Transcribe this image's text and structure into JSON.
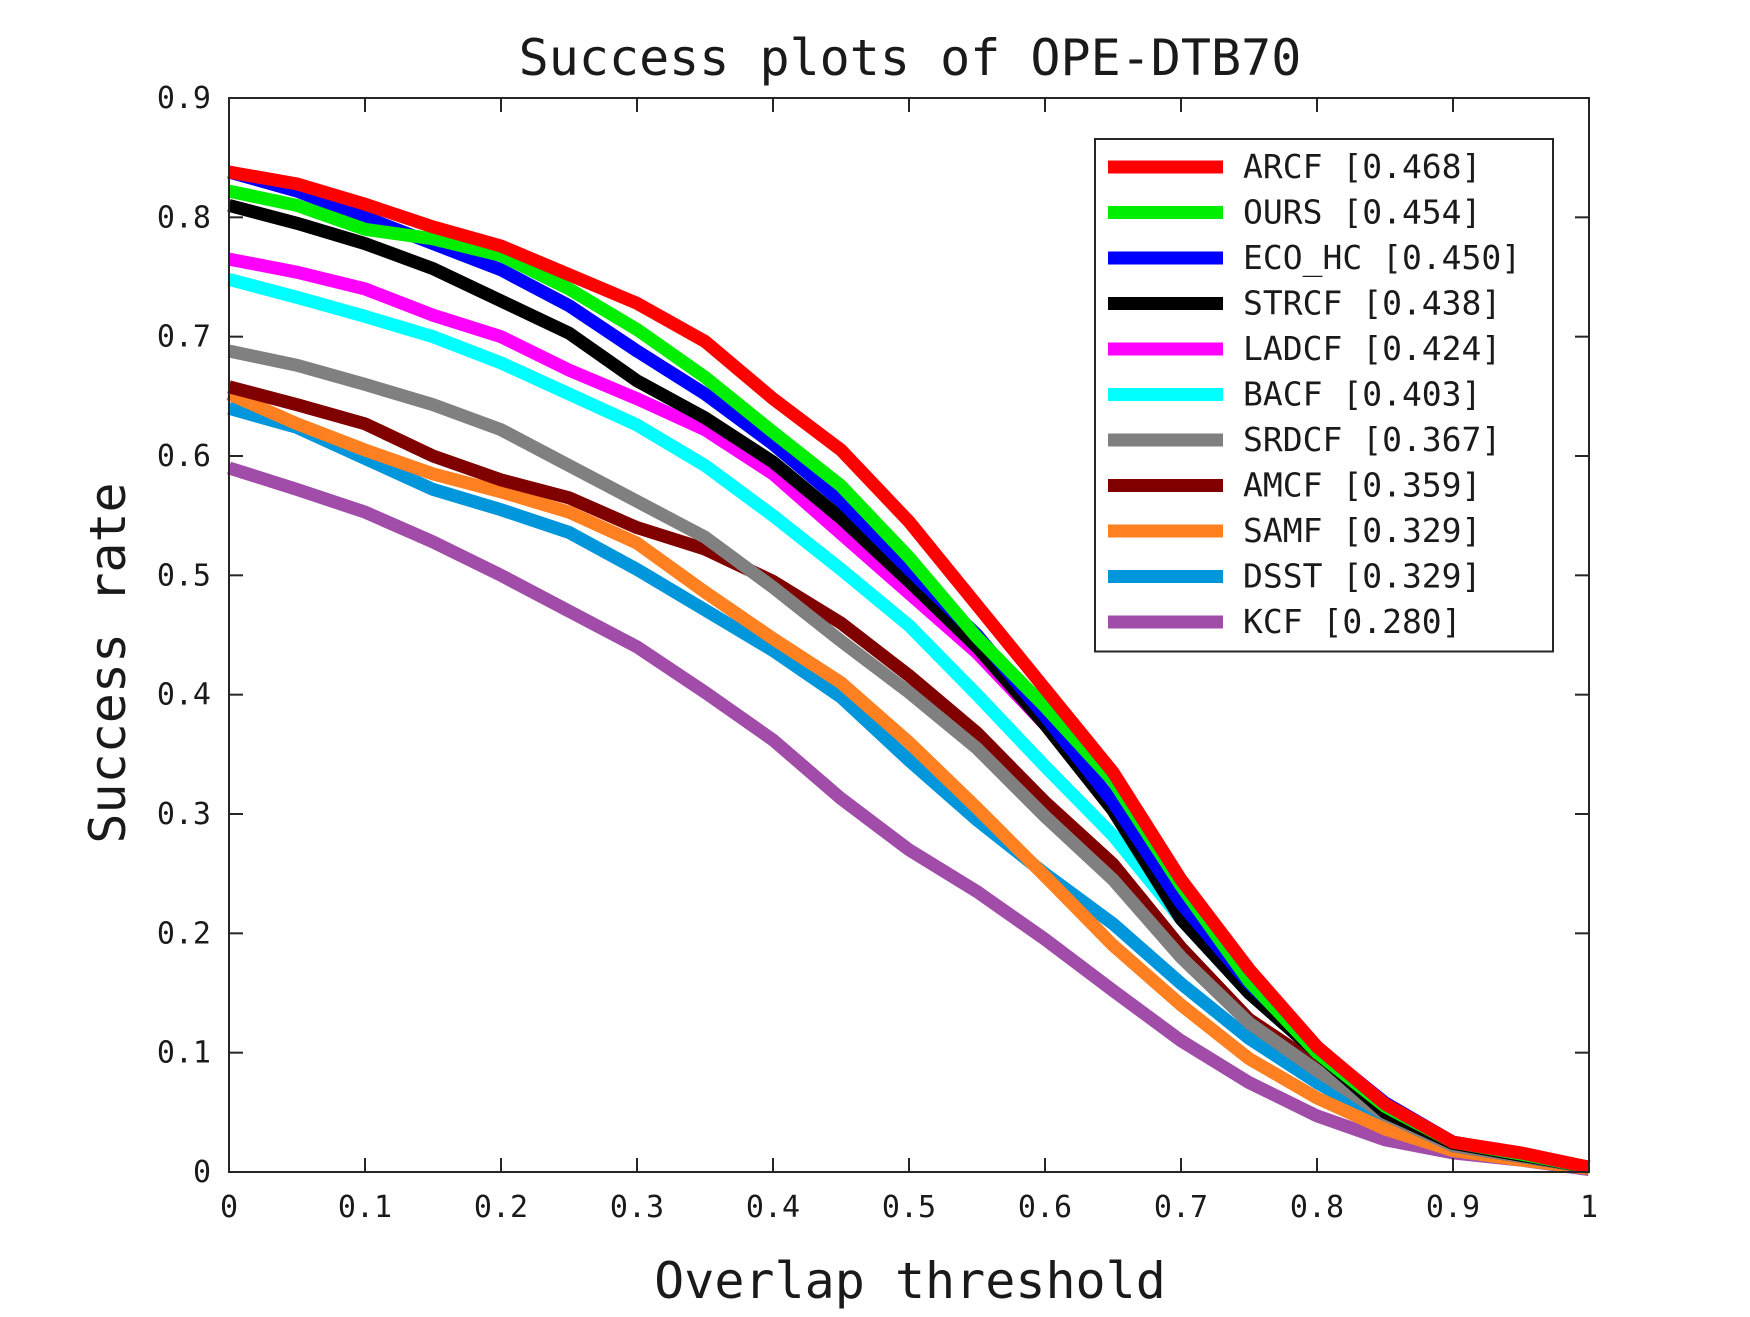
{
  "chart_data": {
    "type": "line",
    "title": "Success plots of OPE-DTB70",
    "xlabel": "Overlap threshold",
    "ylabel": "Success rate",
    "xlim": [
      0,
      1
    ],
    "ylim": [
      0,
      0.9
    ],
    "x_ticks": [
      "0",
      "0.1",
      "0.2",
      "0.3",
      "0.4",
      "0.5",
      "0.6",
      "0.7",
      "0.8",
      "0.9",
      "1"
    ],
    "y_ticks": [
      "0",
      "0.1",
      "0.2",
      "0.3",
      "0.4",
      "0.5",
      "0.6",
      "0.7",
      "0.8",
      "0.9"
    ],
    "grid": false,
    "legend_position": "top-right",
    "x": [
      0,
      0.05,
      0.1,
      0.15,
      0.2,
      0.25,
      0.3,
      0.35,
      0.4,
      0.45,
      0.5,
      0.55,
      0.6,
      0.65,
      0.7,
      0.75,
      0.8,
      0.85,
      0.9,
      0.95,
      1.0
    ],
    "series": [
      {
        "name": "ARCF [0.468]",
        "color": "#ff0000",
        "values": [
          0.838,
          0.828,
          0.811,
          0.792,
          0.776,
          0.752,
          0.728,
          0.696,
          0.648,
          0.605,
          0.545,
          0.475,
          0.405,
          0.335,
          0.245,
          0.17,
          0.105,
          0.057,
          0.025,
          0.016,
          0.004
        ]
      },
      {
        "name": "OURS [0.454]",
        "color": "#00ee00",
        "values": [
          0.822,
          0.81,
          0.79,
          0.782,
          0.768,
          0.74,
          0.706,
          0.666,
          0.62,
          0.575,
          0.515,
          0.448,
          0.39,
          0.328,
          0.24,
          0.16,
          0.1,
          0.055,
          0.025,
          0.015,
          0.004
        ]
      },
      {
        "name": "ECO_HC [0.450]",
        "color": "#0000ff",
        "values": [
          0.838,
          0.822,
          0.8,
          0.778,
          0.756,
          0.726,
          0.688,
          0.652,
          0.61,
          0.562,
          0.505,
          0.45,
          0.382,
          0.31,
          0.225,
          0.158,
          0.104,
          0.058,
          0.025,
          0.015,
          0.004
        ]
      },
      {
        "name": "STRCF [0.438]",
        "color": "#000000",
        "values": [
          0.81,
          0.795,
          0.778,
          0.757,
          0.73,
          0.703,
          0.663,
          0.632,
          0.595,
          0.548,
          0.495,
          0.44,
          0.375,
          0.303,
          0.212,
          0.15,
          0.1,
          0.05,
          0.024,
          0.014,
          0.004
        ]
      },
      {
        "name": "LADCF [0.424]",
        "color": "#ff00ff",
        "values": [
          0.765,
          0.754,
          0.74,
          0.718,
          0.7,
          0.672,
          0.648,
          0.622,
          0.585,
          0.535,
          0.485,
          0.435,
          0.375,
          0.31,
          0.23,
          0.16,
          0.105,
          0.055,
          0.025,
          0.015,
          0.004
        ]
      },
      {
        "name": "BACF [0.403]",
        "color": "#00ffff",
        "values": [
          0.748,
          0.733,
          0.717,
          0.7,
          0.678,
          0.652,
          0.626,
          0.592,
          0.55,
          0.505,
          0.458,
          0.4,
          0.34,
          0.282,
          0.212,
          0.15,
          0.1,
          0.055,
          0.025,
          0.015,
          0.004
        ]
      },
      {
        "name": "SRDCF [0.367]",
        "color": "#808080",
        "values": [
          0.688,
          0.676,
          0.66,
          0.643,
          0.622,
          0.592,
          0.562,
          0.532,
          0.49,
          0.445,
          0.402,
          0.355,
          0.298,
          0.245,
          0.18,
          0.125,
          0.085,
          0.048,
          0.022,
          0.013,
          0.004
        ]
      },
      {
        "name": "AMCF [0.359]",
        "color": "#800000",
        "values": [
          0.658,
          0.643,
          0.627,
          0.6,
          0.58,
          0.565,
          0.54,
          0.522,
          0.495,
          0.46,
          0.416,
          0.368,
          0.31,
          0.258,
          0.188,
          0.128,
          0.09,
          0.05,
          0.022,
          0.013,
          0.004
        ]
      },
      {
        "name": "SAMF [0.329]",
        "color": "#ff8020",
        "values": [
          0.652,
          0.627,
          0.605,
          0.585,
          0.57,
          0.553,
          0.527,
          0.486,
          0.447,
          0.41,
          0.36,
          0.305,
          0.248,
          0.19,
          0.14,
          0.095,
          0.062,
          0.036,
          0.018,
          0.01,
          0.003
        ]
      },
      {
        "name": "DSST [0.329]",
        "color": "#0096dc",
        "values": [
          0.64,
          0.624,
          0.598,
          0.572,
          0.555,
          0.536,
          0.505,
          0.471,
          0.437,
          0.398,
          0.345,
          0.295,
          0.25,
          0.208,
          0.158,
          0.112,
          0.075,
          0.043,
          0.02,
          0.012,
          0.003
        ]
      },
      {
        "name": "KCF [0.280]",
        "color": "#a04ca8",
        "values": [
          0.59,
          0.572,
          0.553,
          0.528,
          0.5,
          0.47,
          0.44,
          0.402,
          0.362,
          0.313,
          0.27,
          0.235,
          0.195,
          0.152,
          0.11,
          0.075,
          0.047,
          0.027,
          0.016,
          0.01,
          0.002
        ]
      }
    ]
  }
}
